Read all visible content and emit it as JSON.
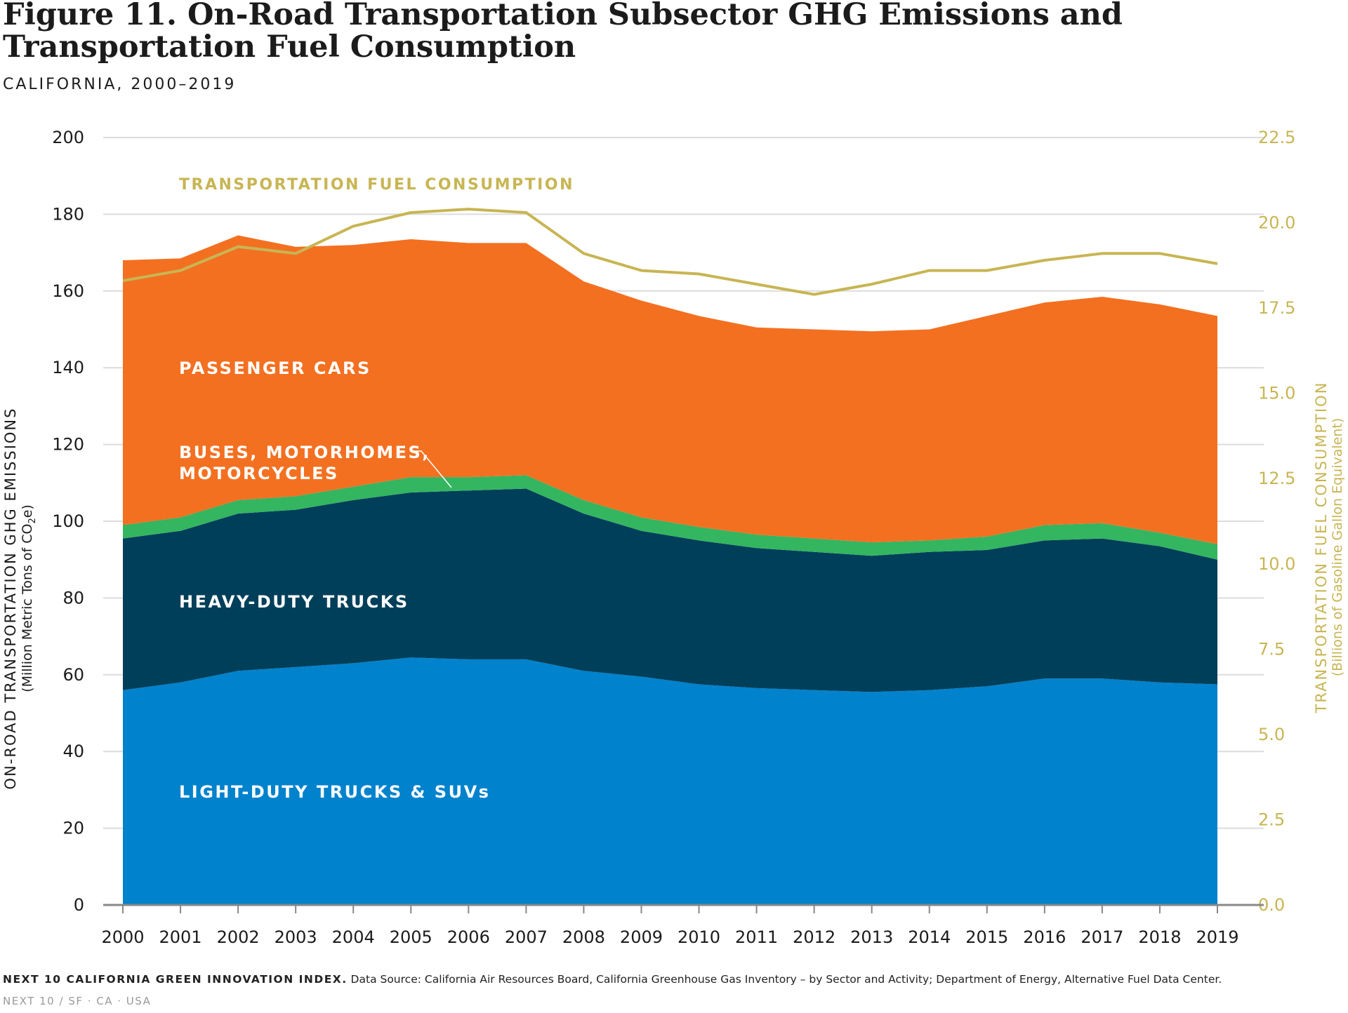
{
  "figure": {
    "title_line1": "Figure 11. On-Road Transportation Subsector GHG Emissions and",
    "title_line2": "Transportation Fuel Consumption",
    "subtitle": "CALIFORNIA, 2000–2019"
  },
  "footer": {
    "source_label": "NEXT 10 CALIFORNIA GREEN INNOVATION INDEX.",
    "source_text": " Data Source: California Air Resources Board, California Greenhouse Gas Inventory – by Sector and Activity; Department of Energy, Alternative Fuel Data Center.",
    "credit": "NEXT 10  /  SF · CA · USA"
  },
  "chart_data": {
    "type": "area",
    "stacked": true,
    "x": [
      "2000",
      "2001",
      "2002",
      "2003",
      "2004",
      "2005",
      "2006",
      "2007",
      "2008",
      "2009",
      "2010",
      "2011",
      "2012",
      "2013",
      "2014",
      "2015",
      "2016",
      "2017",
      "2018",
      "2019"
    ],
    "y_left": {
      "label_main": "ON-ROAD TRANSPORTATION GHG EMISSIONS",
      "label_sub": "(Million Metric Tons of CO",
      "label_sub_subscript": "2",
      "label_sub_end": "e)",
      "ylim": [
        0,
        200
      ],
      "ticks": [
        "0",
        "20",
        "40",
        "60",
        "80",
        "100",
        "120",
        "140",
        "160",
        "180",
        "200"
      ]
    },
    "y_right": {
      "label_main": "TRANSPORTATION FUEL CONSUMPTION",
      "label_sub": "(Billions of Gasoline Gallon Equivalent)",
      "ylim": [
        0,
        22.5
      ],
      "ticks": [
        "0.0",
        "2.5",
        "5.0",
        "7.5",
        "10.0",
        "12.5",
        "15.0",
        "17.5",
        "20.0",
        "22.5"
      ]
    },
    "grid": true,
    "series": [
      {
        "name": "LIGHT-DUTY TRUCKS & SUVs",
        "color": "#0082cc",
        "values": [
          56,
          58,
          61,
          62,
          63,
          64.5,
          64,
          64,
          61,
          59.5,
          57.5,
          56.5,
          56,
          55.5,
          56,
          57,
          59,
          59,
          58,
          57.5
        ]
      },
      {
        "name": "HEAVY-DUTY TRUCKS",
        "color": "#003f5a",
        "values": [
          39.5,
          39.5,
          41,
          41,
          42.5,
          43,
          44,
          44.5,
          41,
          38,
          37.5,
          36.5,
          36,
          35.5,
          36,
          35.5,
          36,
          36.5,
          35.5,
          32.5
        ]
      },
      {
        "name": "BUSES, MOTORHOMES, MOTORCYCLES",
        "label_line1": "BUSES, MOTORHOMES,",
        "label_line2": "MOTORCYCLES",
        "color": "#34b560",
        "values": [
          3.5,
          3.5,
          3.5,
          3.5,
          3.5,
          4,
          3.5,
          3.5,
          3.5,
          3.5,
          3.5,
          3.5,
          3.5,
          3.5,
          3,
          3.5,
          4,
          4,
          3.5,
          4
        ]
      },
      {
        "name": "PASSENGER CARS",
        "color": "#f37021",
        "values": [
          69,
          67.5,
          69,
          65,
          63,
          62,
          61,
          60.5,
          57,
          56.5,
          55,
          54,
          54.5,
          55,
          55,
          57.5,
          58,
          59,
          59.5,
          59.5
        ]
      }
    ],
    "line_series": {
      "name": "TRANSPORTATION FUEL CONSUMPTION",
      "color": "#c8b553",
      "axis": "right",
      "values": [
        18.3,
        18.6,
        19.3,
        19.1,
        19.9,
        20.3,
        20.4,
        20.3,
        19.1,
        18.6,
        18.5,
        18.2,
        17.9,
        18.2,
        18.6,
        18.6,
        18.9,
        19.1,
        19.1,
        18.8
      ]
    }
  }
}
